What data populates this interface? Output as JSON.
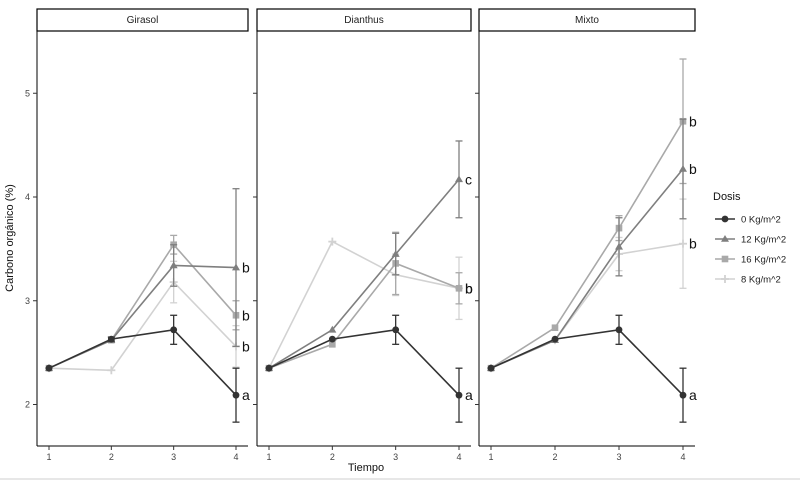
{
  "chart_data": {
    "type": "line",
    "ylabel": "Carbono orgánico (%)",
    "xlabel": "Tiempo",
    "x": [
      1,
      2,
      3,
      4
    ],
    "x_ticks": [
      "1",
      "2",
      "3",
      "4"
    ],
    "ylim": [
      1.6,
      5.6
    ],
    "y_ticks": [
      2,
      3,
      4,
      5
    ],
    "grid": false,
    "legend_title": "Dosis",
    "legend_position": "right",
    "series_styles": [
      {
        "name": "0 Kg/m^2",
        "color": "#333333",
        "marker": "circle"
      },
      {
        "name": "12 Kg/m^2",
        "color": "#7f7f7f",
        "marker": "triangle"
      },
      {
        "name": "16 Kg/m^2",
        "color": "#a9a9a9",
        "marker": "square"
      },
      {
        "name": "8 Kg/m^2",
        "color": "#d2d2d2",
        "marker": "plus"
      }
    ],
    "panels": [
      {
        "title": "Girasol",
        "series": [
          {
            "name": "0 Kg/m^2",
            "values": [
              2.35,
              2.63,
              2.72,
              2.09
            ],
            "err": [
              0,
              0.02,
              0.14,
              0.26
            ]
          },
          {
            "name": "12 Kg/m^2",
            "values": [
              2.35,
              2.62,
              3.34,
              3.32
            ],
            "err": [
              0,
              0,
              0.2,
              0.76
            ]
          },
          {
            "name": "16 Kg/m^2",
            "values": [
              2.35,
              2.62,
              3.54,
              2.86
            ],
            "err": [
              0,
              0,
              0.09,
              0.14
            ]
          },
          {
            "name": "8 Kg/m^2",
            "values": [
              2.35,
              2.33,
              3.18,
              2.56
            ],
            "err": [
              0,
              0,
              0.2,
              0.2
            ]
          }
        ],
        "labels": [
          {
            "series": 1,
            "text": "b"
          },
          {
            "series": 2,
            "text": "b"
          },
          {
            "series": 3,
            "text": "b"
          },
          {
            "series": 0,
            "text": "a"
          }
        ]
      },
      {
        "title": "Dianthus",
        "series": [
          {
            "name": "0 Kg/m^2",
            "values": [
              2.35,
              2.63,
              2.72,
              2.09
            ],
            "err": [
              0,
              0,
              0.14,
              0.26
            ]
          },
          {
            "name": "12 Kg/m^2",
            "values": [
              2.35,
              2.72,
              3.45,
              4.17
            ],
            "err": [
              0,
              0,
              0.2,
              0.37
            ]
          },
          {
            "name": "16 Kg/m^2",
            "values": [
              2.35,
              2.58,
              3.36,
              3.12
            ],
            "err": [
              0,
              0,
              0.3,
              0.15
            ]
          },
          {
            "name": "8 Kg/m^2",
            "values": [
              2.35,
              3.57,
              3.25,
              3.12
            ],
            "err": [
              0,
              0,
              0.2,
              0.3
            ]
          }
        ],
        "labels": [
          {
            "series": 1,
            "text": "c"
          },
          {
            "series": 2,
            "text": "b"
          },
          {
            "series": 3,
            "text": "b"
          },
          {
            "series": 0,
            "text": "a"
          }
        ]
      },
      {
        "title": "Mixto",
        "series": [
          {
            "name": "0 Kg/m^2",
            "values": [
              2.35,
              2.63,
              2.72,
              2.09
            ],
            "err": [
              0,
              0,
              0.14,
              0.26
            ]
          },
          {
            "name": "12 Kg/m^2",
            "values": [
              2.35,
              2.62,
              3.52,
              4.27
            ],
            "err": [
              0,
              0,
              0.28,
              0.48
            ]
          },
          {
            "name": "16 Kg/m^2",
            "values": [
              2.35,
              2.74,
              3.7,
              4.73
            ],
            "err": [
              0,
              0,
              0.12,
              0.6
            ]
          },
          {
            "name": "8 Kg/m^2",
            "values": [
              2.35,
              2.62,
              3.45,
              3.55
            ],
            "err": [
              0,
              0,
              0.16,
              0.43
            ]
          }
        ],
        "labels": [
          {
            "series": 2,
            "text": "b"
          },
          {
            "series": 1,
            "text": "b"
          },
          {
            "series": 3,
            "text": "b"
          },
          {
            "series": 0,
            "text": "a"
          }
        ]
      }
    ]
  }
}
